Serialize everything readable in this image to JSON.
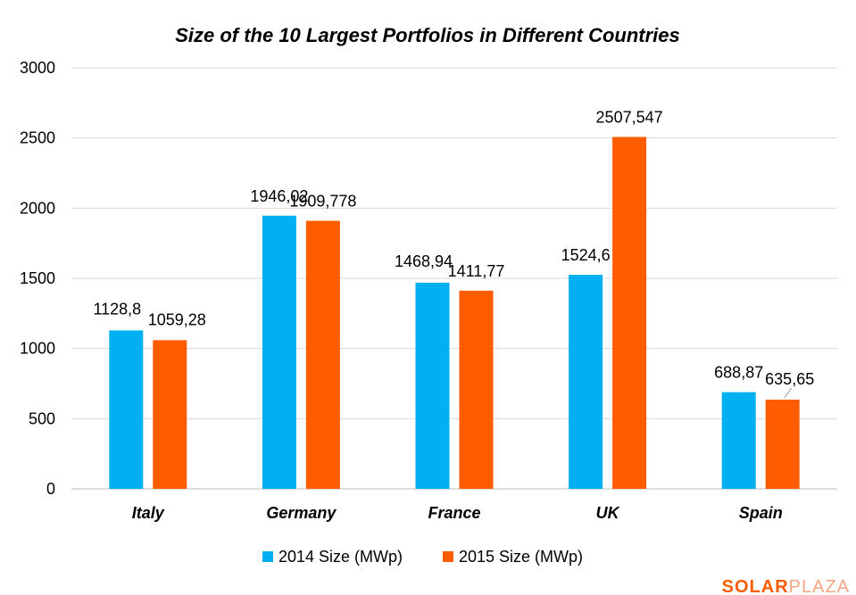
{
  "chart_data": {
    "type": "bar",
    "title": "Size of the 10  Largest Portfolios in Different Countries",
    "categories": [
      "Italy",
      "Germany",
      "France",
      "UK",
      "Spain"
    ],
    "series": [
      {
        "name": "2014 Size (MWp)",
        "color": "#00b0f0",
        "values": [
          1128.8,
          1946.02,
          1468.94,
          1524.6,
          688.87
        ],
        "labels": [
          "1128,8",
          "1946,02",
          "1468,94",
          "1524,6",
          "688,87"
        ]
      },
      {
        "name": "2015 Size (MWp)",
        "color": "#ff5c00",
        "values": [
          1059.28,
          1909.778,
          1411.77,
          2507.547,
          635.65
        ],
        "labels": [
          "1059,28",
          "1909,778",
          "1411,77",
          "2507,547",
          "635,65"
        ]
      }
    ],
    "ylim": [
      0,
      3000
    ],
    "yticks": [
      0,
      500,
      1000,
      1500,
      2000,
      2500,
      3000
    ],
    "grid": true,
    "legend": "bottom-center"
  },
  "brand": {
    "part1": "S",
    "part2": "LAR",
    "part3": "PLAZA",
    "color_dark": "#ff5c00",
    "color_light": "#f4a582"
  }
}
